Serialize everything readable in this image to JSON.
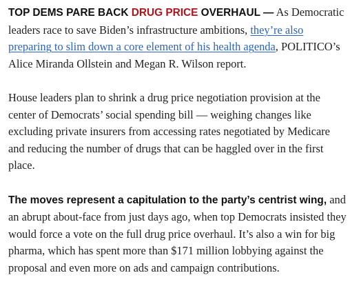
{
  "headline": {
    "kicker_before": "TOP DEMS PARE BACK ",
    "kicker_highlight": "DRUG PRICE",
    "kicker_after": " OVERHAUL —",
    "highlight_color": "#b5121b"
  },
  "paragraph1": {
    "text_before_link": " As Democratic leaders race to save Biden’s infrastructure ambitions, ",
    "link_text": "they’re also preparing to slim down a core element of his health agenda",
    "text_after_link": ", POLITICO’s Alice Miranda Ollstein and Megan R. Wilson report.",
    "link_color": "#2a62c4"
  },
  "paragraph2": {
    "text": "House leaders plan to shrink a drug price negotiation provision at the center of Democrats’ social spending bill — weighing changes like excluding private insurers from accessing rates negotiated by Medicare and reducing the number of drugs that can be haggled over in the first place."
  },
  "paragraph3": {
    "bold_lead": "The moves represent a capitulation to the party’s centrist wing,",
    "text": " and an abrupt about-face from just days ago, when top Democrats insisted they would force a vote on the full drug price overhaul. It’s also a win for big pharma, which has spent more than $171 million lobbying against the proposal and even more on ads and campaign contributions."
  }
}
